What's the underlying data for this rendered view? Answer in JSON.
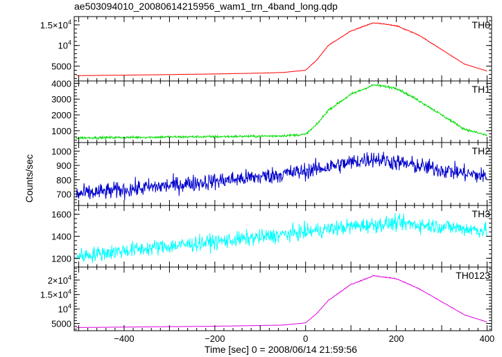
{
  "chart_data": {
    "type": "line",
    "title": "ae503094010_20080614215956_wam1_trn_4band_long.qdp",
    "xlabel": "Time [sec] 0 = 2008/06/14 21:59:56",
    "ylabel": "Counts/sec",
    "xlim": [
      -510,
      410
    ],
    "x_ticks": [
      -400,
      -200,
      0,
      200,
      400
    ],
    "x_tick_labels": [
      "−400",
      "−200",
      "0",
      "200",
      "400"
    ],
    "grid": false,
    "panels": [
      {
        "name": "TH0",
        "color": "#ff0000",
        "ylim": [
          1400,
          17000
        ],
        "y_ticks": [
          5000,
          10000,
          15000
        ],
        "y_tick_labels": [
          {
            "mantissa": "5000",
            "exponent": ""
          },
          {
            "mantissa": "10",
            "exponent": "4"
          },
          {
            "mantissa": "1.5×10",
            "exponent": "4"
          }
        ],
        "x": [
          -500,
          -400,
          -300,
          -200,
          -100,
          -50,
          0,
          25,
          50,
          100,
          150,
          200,
          250,
          300,
          350,
          400
        ],
        "y": [
          2700,
          2800,
          2950,
          3100,
          3300,
          3450,
          4000,
          6500,
          10000,
          13500,
          15500,
          14800,
          12500,
          9000,
          5500,
          3800
        ]
      },
      {
        "name": "TH1",
        "color": "#00dd00",
        "ylim": [
          250,
          4150
        ],
        "y_ticks": [
          1000,
          2000,
          3000,
          4000
        ],
        "y_tick_labels": [
          {
            "mantissa": "1000",
            "exponent": ""
          },
          {
            "mantissa": "2000",
            "exponent": ""
          },
          {
            "mantissa": "3000",
            "exponent": ""
          },
          {
            "mantissa": "4000",
            "exponent": ""
          }
        ],
        "x": [
          -500,
          -400,
          -300,
          -200,
          -100,
          -50,
          0,
          25,
          50,
          100,
          150,
          200,
          250,
          300,
          350,
          400
        ],
        "y": [
          550,
          570,
          600,
          620,
          650,
          680,
          760,
          1400,
          2300,
          3300,
          3900,
          3700,
          2900,
          2000,
          1100,
          700
        ],
        "noise": 55
      },
      {
        "name": "TH2",
        "color": "#0000cc",
        "ylim": [
          620,
          1060
        ],
        "y_ticks": [
          700,
          800,
          900,
          1000
        ],
        "y_tick_labels": [
          {
            "mantissa": "700",
            "exponent": ""
          },
          {
            "mantissa": "800",
            "exponent": ""
          },
          {
            "mantissa": "900",
            "exponent": ""
          },
          {
            "mantissa": "1000",
            "exponent": ""
          }
        ],
        "x": [
          -500,
          -400,
          -300,
          -200,
          -100,
          0,
          100,
          150,
          200,
          300,
          400
        ],
        "y": [
          700,
          730,
          760,
          790,
          820,
          860,
          920,
          950,
          920,
          870,
          820
        ],
        "noise": 42
      },
      {
        "name": "TH3",
        "color": "#00ffff",
        "ylim": [
          1120,
          1680
        ],
        "y_ticks": [
          1200,
          1400,
          1600
        ],
        "y_tick_labels": [
          {
            "mantissa": "1200",
            "exponent": ""
          },
          {
            "mantissa": "1400",
            "exponent": ""
          },
          {
            "mantissa": "1600",
            "exponent": ""
          }
        ],
        "x": [
          -500,
          -400,
          -300,
          -200,
          -100,
          0,
          100,
          200,
          300,
          400
        ],
        "y": [
          1220,
          1270,
          1310,
          1350,
          1390,
          1440,
          1490,
          1520,
          1490,
          1450
        ],
        "noise": 50
      },
      {
        "name": "TH0123",
        "color": "#e000e0",
        "ylim": [
          2500,
          24500
        ],
        "y_ticks": [
          5000,
          10000,
          15000,
          20000
        ],
        "y_tick_labels": [
          {
            "mantissa": "5000",
            "exponent": ""
          },
          {
            "mantissa": "10",
            "exponent": "4"
          },
          {
            "mantissa": "1.5×10",
            "exponent": "4"
          },
          {
            "mantissa": "2×10",
            "exponent": "4"
          }
        ],
        "x": [
          -500,
          -400,
          -300,
          -200,
          -100,
          -50,
          0,
          25,
          50,
          100,
          150,
          200,
          250,
          300,
          350,
          400
        ],
        "y": [
          3600,
          3750,
          3900,
          4050,
          4300,
          4450,
          5200,
          8500,
          13000,
          18500,
          21500,
          20500,
          17000,
          12500,
          8000,
          5500
        ]
      }
    ]
  }
}
